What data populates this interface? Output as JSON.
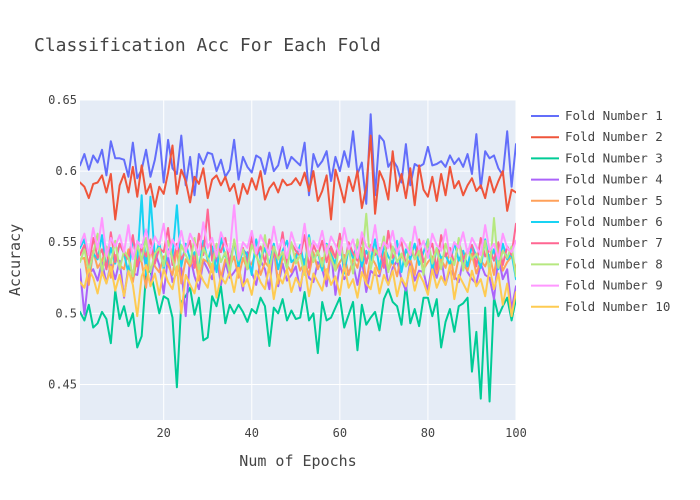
{
  "chart_data": {
    "type": "line",
    "title": "Classification Acc For Each Fold",
    "xlabel": "Num of Epochs",
    "ylabel": "Accuracy",
    "xlim": [
      1,
      100
    ],
    "ylim": [
      0.425,
      0.65
    ],
    "x_ticks": [
      20,
      40,
      60,
      80,
      100
    ],
    "y_ticks": [
      0.45,
      0.5,
      0.55,
      0.6,
      0.65
    ],
    "x_tick_labels": [
      "20",
      "40",
      "60",
      "80",
      "100"
    ],
    "y_tick_labels": [
      "0.45",
      "0.5",
      "0.55",
      "0.6",
      "0.65"
    ],
    "grid": true,
    "legend_position": "right",
    "plot_background": "#E5ECF6",
    "x": [
      1,
      2,
      3,
      4,
      5,
      6,
      7,
      8,
      9,
      10,
      11,
      12,
      13,
      14,
      15,
      16,
      17,
      18,
      19,
      20,
      21,
      22,
      23,
      24,
      25,
      26,
      27,
      28,
      29,
      30,
      31,
      32,
      33,
      34,
      35,
      36,
      37,
      38,
      39,
      40,
      41,
      42,
      43,
      44,
      45,
      46,
      47,
      48,
      49,
      50,
      51,
      52,
      53,
      54,
      55,
      56,
      57,
      58,
      59,
      60,
      61,
      62,
      63,
      64,
      65,
      66,
      67,
      68,
      69,
      70,
      71,
      72,
      73,
      74,
      75,
      76,
      77,
      78,
      79,
      80,
      81,
      82,
      83,
      84,
      85,
      86,
      87,
      88,
      89,
      90,
      91,
      92,
      93,
      94,
      95,
      96,
      97,
      98,
      99,
      100
    ],
    "series": [
      {
        "name": "Fold Number 1",
        "color": "#636EFA",
        "values": [
          0.604,
          0.612,
          0.601,
          0.611,
          0.606,
          0.615,
          0.597,
          0.621,
          0.609,
          0.609,
          0.608,
          0.596,
          0.62,
          0.595,
          0.601,
          0.615,
          0.596,
          0.608,
          0.626,
          0.592,
          0.622,
          0.602,
          0.598,
          0.625,
          0.59,
          0.61,
          0.583,
          0.612,
          0.605,
          0.613,
          0.612,
          0.6,
          0.608,
          0.596,
          0.601,
          0.622,
          0.594,
          0.61,
          0.603,
          0.599,
          0.611,
          0.609,
          0.598,
          0.613,
          0.6,
          0.604,
          0.617,
          0.602,
          0.61,
          0.607,
          0.604,
          0.62,
          0.583,
          0.612,
          0.603,
          0.607,
          0.614,
          0.593,
          0.61,
          0.6,
          0.614,
          0.603,
          0.628,
          0.598,
          0.606,
          0.577,
          0.64,
          0.583,
          0.625,
          0.621,
          0.603,
          0.608,
          0.603,
          0.592,
          0.619,
          0.59,
          0.605,
          0.603,
          0.605,
          0.617,
          0.604,
          0.605,
          0.607,
          0.603,
          0.611,
          0.605,
          0.609,
          0.603,
          0.612,
          0.598,
          0.626,
          0.588,
          0.614,
          0.609,
          0.611,
          0.602,
          0.597,
          0.628,
          0.589,
          0.619
        ]
      },
      {
        "name": "Fold Number 2",
        "color": "#EF553B",
        "values": [
          0.592,
          0.589,
          0.581,
          0.591,
          0.592,
          0.597,
          0.585,
          0.598,
          0.566,
          0.59,
          0.598,
          0.585,
          0.603,
          0.582,
          0.604,
          0.584,
          0.591,
          0.575,
          0.589,
          0.584,
          0.599,
          0.618,
          0.584,
          0.601,
          0.593,
          0.578,
          0.596,
          0.591,
          0.602,
          0.581,
          0.594,
          0.597,
          0.59,
          0.596,
          0.586,
          0.591,
          0.577,
          0.591,
          0.584,
          0.595,
          0.587,
          0.6,
          0.58,
          0.588,
          0.592,
          0.585,
          0.594,
          0.59,
          0.591,
          0.595,
          0.59,
          0.599,
          0.586,
          0.6,
          0.579,
          0.586,
          0.597,
          0.566,
          0.601,
          0.59,
          0.578,
          0.596,
          0.586,
          0.6,
          0.574,
          0.589,
          0.625,
          0.57,
          0.6,
          0.593,
          0.58,
          0.614,
          0.586,
          0.598,
          0.581,
          0.602,
          0.576,
          0.604,
          0.587,
          0.582,
          0.596,
          0.579,
          0.598,
          0.583,
          0.603,
          0.588,
          0.593,
          0.583,
          0.59,
          0.595,
          0.586,
          0.59,
          0.581,
          0.596,
          0.585,
          0.593,
          0.6,
          0.572,
          0.587,
          0.585
        ]
      },
      {
        "name": "Fold Number 3",
        "color": "#00CC96",
        "values": [
          0.501,
          0.495,
          0.506,
          0.49,
          0.493,
          0.501,
          0.496,
          0.479,
          0.516,
          0.496,
          0.505,
          0.491,
          0.5,
          0.476,
          0.484,
          0.528,
          0.53,
          0.515,
          0.5,
          0.512,
          0.51,
          0.497,
          0.448,
          0.508,
          0.512,
          0.518,
          0.499,
          0.511,
          0.481,
          0.483,
          0.512,
          0.505,
          0.519,
          0.493,
          0.506,
          0.5,
          0.506,
          0.501,
          0.494,
          0.503,
          0.5,
          0.511,
          0.505,
          0.477,
          0.504,
          0.5,
          0.51,
          0.495,
          0.502,
          0.496,
          0.497,
          0.515,
          0.495,
          0.5,
          0.472,
          0.508,
          0.495,
          0.497,
          0.504,
          0.511,
          0.49,
          0.499,
          0.508,
          0.474,
          0.506,
          0.492,
          0.497,
          0.501,
          0.488,
          0.51,
          0.517,
          0.508,
          0.505,
          0.492,
          0.52,
          0.493,
          0.503,
          0.491,
          0.511,
          0.511,
          0.498,
          0.51,
          0.476,
          0.494,
          0.503,
          0.487,
          0.505,
          0.507,
          0.511,
          0.459,
          0.487,
          0.44,
          0.504,
          0.438,
          0.511,
          0.498,
          0.505,
          0.511,
          0.495,
          0.51
        ]
      },
      {
        "name": "Fold Number 4",
        "color": "#AB63FA",
        "values": [
          0.531,
          0.499,
          0.528,
          0.531,
          0.523,
          0.536,
          0.521,
          0.535,
          0.524,
          0.537,
          0.511,
          0.533,
          0.528,
          0.527,
          0.548,
          0.532,
          0.52,
          0.543,
          0.534,
          0.514,
          0.54,
          0.522,
          0.529,
          0.532,
          0.498,
          0.54,
          0.526,
          0.517,
          0.537,
          0.531,
          0.524,
          0.541,
          0.52,
          0.536,
          0.525,
          0.529,
          0.534,
          0.516,
          0.543,
          0.529,
          0.52,
          0.537,
          0.531,
          0.517,
          0.546,
          0.519,
          0.535,
          0.523,
          0.527,
          0.533,
          0.516,
          0.538,
          0.525,
          0.522,
          0.536,
          0.531,
          0.519,
          0.544,
          0.513,
          0.534,
          0.524,
          0.529,
          0.535,
          0.52,
          0.538,
          0.515,
          0.53,
          0.527,
          0.526,
          0.541,
          0.52,
          0.532,
          0.537,
          0.524,
          0.516,
          0.537,
          0.523,
          0.53,
          0.529,
          0.516,
          0.535,
          0.525,
          0.539,
          0.52,
          0.531,
          0.526,
          0.522,
          0.538,
          0.529,
          0.524,
          0.521,
          0.535,
          0.527,
          0.525,
          0.51,
          0.54,
          0.524,
          0.531,
          0.503,
          0.519
        ]
      },
      {
        "name": "Fold Number 5",
        "color": "#FFA15A",
        "values": [
          0.538,
          0.539,
          0.52,
          0.544,
          0.532,
          0.537,
          0.546,
          0.525,
          0.541,
          0.534,
          0.531,
          0.545,
          0.522,
          0.54,
          0.536,
          0.518,
          0.546,
          0.533,
          0.529,
          0.54,
          0.534,
          0.527,
          0.545,
          0.521,
          0.538,
          0.533,
          0.541,
          0.523,
          0.538,
          0.536,
          0.529,
          0.544,
          0.525,
          0.538,
          0.533,
          0.54,
          0.525,
          0.539,
          0.531,
          0.535,
          0.543,
          0.527,
          0.536,
          0.532,
          0.546,
          0.521,
          0.54,
          0.534,
          0.529,
          0.542,
          0.53,
          0.536,
          0.527,
          0.543,
          0.531,
          0.539,
          0.524,
          0.545,
          0.53,
          0.536,
          0.541,
          0.527,
          0.538,
          0.532,
          0.546,
          0.522,
          0.54,
          0.535,
          0.528,
          0.543,
          0.53,
          0.537,
          0.526,
          0.542,
          0.533,
          0.538,
          0.527,
          0.545,
          0.531,
          0.536,
          0.54,
          0.528,
          0.538,
          0.532,
          0.544,
          0.524,
          0.539,
          0.535,
          0.53,
          0.542,
          0.528,
          0.537,
          0.533,
          0.541,
          0.527,
          0.546,
          0.53,
          0.536,
          0.54,
          0.532
        ]
      },
      {
        "name": "Fold Number 6",
        "color": "#19D3F3",
        "values": [
          0.546,
          0.552,
          0.529,
          0.542,
          0.538,
          0.555,
          0.531,
          0.546,
          0.535,
          0.549,
          0.542,
          0.528,
          0.553,
          0.536,
          0.583,
          0.527,
          0.582,
          0.539,
          0.55,
          0.531,
          0.545,
          0.54,
          0.576,
          0.533,
          0.549,
          0.538,
          0.543,
          0.532,
          0.551,
          0.537,
          0.547,
          0.529,
          0.553,
          0.54,
          0.536,
          0.55,
          0.533,
          0.545,
          0.541,
          0.527,
          0.552,
          0.538,
          0.546,
          0.534,
          0.549,
          0.531,
          0.544,
          0.551,
          0.536,
          0.539,
          0.548,
          0.532,
          0.555,
          0.537,
          0.543,
          0.53,
          0.549,
          0.541,
          0.535,
          0.553,
          0.528,
          0.546,
          0.539,
          0.55,
          0.533,
          0.544,
          0.537,
          0.552,
          0.531,
          0.547,
          0.54,
          0.535,
          0.551,
          0.529,
          0.545,
          0.538,
          0.549,
          0.534,
          0.543,
          0.552,
          0.53,
          0.546,
          0.539,
          0.541,
          0.534,
          0.55,
          0.537,
          0.544,
          0.533,
          0.548,
          0.54,
          0.532,
          0.552,
          0.536,
          0.545,
          0.531,
          0.549,
          0.538,
          0.542,
          0.524
        ]
      },
      {
        "name": "Fold Number 7",
        "color": "#FF6692",
        "values": [
          0.541,
          0.548,
          0.534,
          0.553,
          0.539,
          0.545,
          0.531,
          0.557,
          0.536,
          0.549,
          0.542,
          0.538,
          0.555,
          0.533,
          0.547,
          0.54,
          0.552,
          0.535,
          0.546,
          0.543,
          0.56,
          0.534,
          0.549,
          0.538,
          0.544,
          0.551,
          0.532,
          0.556,
          0.541,
          0.573,
          0.537,
          0.548,
          0.543,
          0.553,
          0.535,
          0.55,
          0.539,
          0.546,
          0.533,
          0.554,
          0.54,
          0.547,
          0.536,
          0.552,
          0.542,
          0.538,
          0.557,
          0.534,
          0.549,
          0.544,
          0.54,
          0.555,
          0.532,
          0.548,
          0.541,
          0.551,
          0.536,
          0.547,
          0.539,
          0.556,
          0.533,
          0.55,
          0.542,
          0.537,
          0.553,
          0.535,
          0.548,
          0.541,
          0.546,
          0.532,
          0.558,
          0.539,
          0.544,
          0.55,
          0.534,
          0.547,
          0.538,
          0.552,
          0.536,
          0.543,
          0.549,
          0.531,
          0.555,
          0.54,
          0.546,
          0.535,
          0.551,
          0.538,
          0.544,
          0.548,
          0.533,
          0.553,
          0.54,
          0.545,
          0.537,
          0.55,
          0.534,
          0.547,
          0.541,
          0.563
        ]
      },
      {
        "name": "Fold Number 8",
        "color": "#B6E880",
        "values": [
          0.536,
          0.545,
          0.53,
          0.542,
          0.556,
          0.528,
          0.547,
          0.535,
          0.551,
          0.531,
          0.544,
          0.539,
          0.526,
          0.549,
          0.537,
          0.553,
          0.529,
          0.542,
          0.546,
          0.533,
          0.551,
          0.538,
          0.527,
          0.548,
          0.541,
          0.535,
          0.553,
          0.53,
          0.546,
          0.539,
          0.532,
          0.549,
          0.536,
          0.543,
          0.528,
          0.552,
          0.537,
          0.545,
          0.531,
          0.548,
          0.54,
          0.534,
          0.555,
          0.529,
          0.547,
          0.538,
          0.543,
          0.531,
          0.55,
          0.535,
          0.541,
          0.527,
          0.553,
          0.536,
          0.544,
          0.533,
          0.548,
          0.539,
          0.53,
          0.551,
          0.535,
          0.546,
          0.528,
          0.552,
          0.537,
          0.57,
          0.531,
          0.545,
          0.54,
          0.554,
          0.529,
          0.547,
          0.536,
          0.542,
          0.533,
          0.55,
          0.538,
          0.544,
          0.527,
          0.552,
          0.535,
          0.546,
          0.531,
          0.549,
          0.54,
          0.534,
          0.553,
          0.53,
          0.545,
          0.538,
          0.542,
          0.536,
          0.551,
          0.528,
          0.567,
          0.532,
          0.544,
          0.539,
          0.547,
          0.526
        ]
      },
      {
        "name": "Fold Number 9",
        "color": "#FF97FF",
        "values": [
          0.548,
          0.556,
          0.541,
          0.56,
          0.545,
          0.567,
          0.54,
          0.553,
          0.547,
          0.555,
          0.543,
          0.562,
          0.538,
          0.551,
          0.546,
          0.559,
          0.542,
          0.554,
          0.548,
          0.563,
          0.54,
          0.552,
          0.545,
          0.558,
          0.543,
          0.556,
          0.549,
          0.541,
          0.564,
          0.546,
          0.553,
          0.54,
          0.557,
          0.548,
          0.543,
          0.576,
          0.538,
          0.55,
          0.546,
          0.558,
          0.542,
          0.555,
          0.548,
          0.541,
          0.561,
          0.545,
          0.552,
          0.539,
          0.557,
          0.547,
          0.543,
          0.563,
          0.54,
          0.551,
          0.546,
          0.558,
          0.542,
          0.554,
          0.548,
          0.541,
          0.56,
          0.545,
          0.552,
          0.539,
          0.557,
          0.547,
          0.544,
          0.562,
          0.54,
          0.55,
          0.546,
          0.558,
          0.542,
          0.553,
          0.548,
          0.541,
          0.561,
          0.545,
          0.551,
          0.539,
          0.556,
          0.548,
          0.544,
          0.559,
          0.54,
          0.55,
          0.546,
          0.557,
          0.542,
          0.553,
          0.547,
          0.541,
          0.562,
          0.544,
          0.549,
          0.538,
          0.556,
          0.546,
          0.543,
          0.551
        ]
      },
      {
        "name": "Fold Number 10",
        "color": "#FECB52",
        "values": [
          0.522,
          0.518,
          0.531,
          0.525,
          0.514,
          0.529,
          0.521,
          0.533,
          0.516,
          0.527,
          0.512,
          0.53,
          0.52,
          0.498,
          0.526,
          0.534,
          0.519,
          0.528,
          0.513,
          0.531,
          0.522,
          0.517,
          0.533,
          0.5,
          0.527,
          0.52,
          0.514,
          0.53,
          0.523,
          0.518,
          0.535,
          0.511,
          0.526,
          0.521,
          0.529,
          0.515,
          0.532,
          0.519,
          0.524,
          0.513,
          0.53,
          0.522,
          0.517,
          0.534,
          0.51,
          0.527,
          0.521,
          0.531,
          0.515,
          0.525,
          0.519,
          0.533,
          0.512,
          0.528,
          0.522,
          0.516,
          0.531,
          0.52,
          0.526,
          0.513,
          0.534,
          0.518,
          0.524,
          0.511,
          0.529,
          0.521,
          0.517,
          0.532,
          0.514,
          0.527,
          0.52,
          0.53,
          0.512,
          0.525,
          0.519,
          0.533,
          0.516,
          0.528,
          0.522,
          0.513,
          0.531,
          0.518,
          0.526,
          0.52,
          0.534,
          0.51,
          0.527,
          0.521,
          0.515,
          0.53,
          0.519,
          0.524,
          0.512,
          0.532,
          0.517,
          0.528,
          0.506,
          0.521,
          0.498,
          0.515
        ]
      }
    ]
  }
}
